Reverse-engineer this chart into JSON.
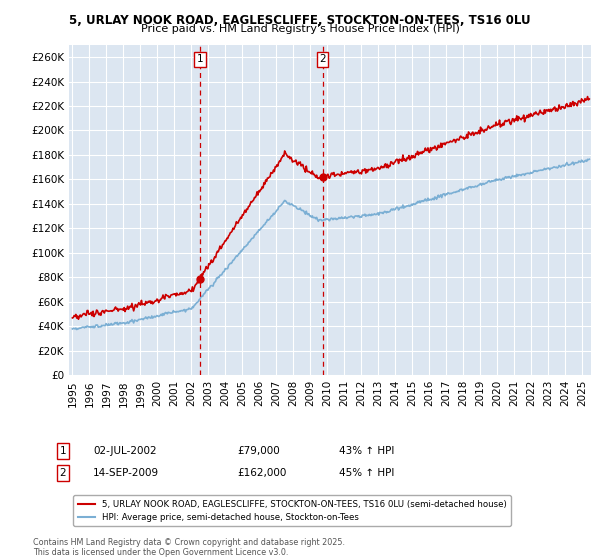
{
  "title1": "5, URLAY NOOK ROAD, EAGLESCLIFFE, STOCKTON-ON-TEES, TS16 0LU",
  "title2": "Price paid vs. HM Land Registry's House Price Index (HPI)",
  "ylabel_ticks": [
    "£0",
    "£20K",
    "£40K",
    "£60K",
    "£80K",
    "£100K",
    "£120K",
    "£140K",
    "£160K",
    "£180K",
    "£200K",
    "£220K",
    "£240K",
    "£260K"
  ],
  "ytick_vals": [
    0,
    20000,
    40000,
    60000,
    80000,
    100000,
    120000,
    140000,
    160000,
    180000,
    200000,
    220000,
    240000,
    260000
  ],
  "ylim": [
    0,
    270000
  ],
  "xlim_start": 1994.8,
  "xlim_end": 2025.5,
  "purchase1_date": 2002.5,
  "purchase1_price": 79000,
  "purchase2_date": 2009.71,
  "purchase2_price": 162000,
  "legend_line1": "5, URLAY NOOK ROAD, EAGLESCLIFFE, STOCKTON-ON-TEES, TS16 0LU (semi-detached house)",
  "legend_line2": "HPI: Average price, semi-detached house, Stockton-on-Tees",
  "annotation1_label": "1",
  "annotation1_date": "02-JUL-2002",
  "annotation1_price": "£79,000",
  "annotation1_hpi": "43% ↑ HPI",
  "annotation2_label": "2",
  "annotation2_date": "14-SEP-2009",
  "annotation2_price": "£162,000",
  "annotation2_hpi": "45% ↑ HPI",
  "footer": "Contains HM Land Registry data © Crown copyright and database right 2025.\nThis data is licensed under the Open Government Licence v3.0.",
  "line_color_red": "#cc0000",
  "line_color_blue": "#7bafd4",
  "background_color": "#dce6f1",
  "grid_color": "#ffffff",
  "vline_color": "#cc0000",
  "fig_bg": "#ffffff"
}
